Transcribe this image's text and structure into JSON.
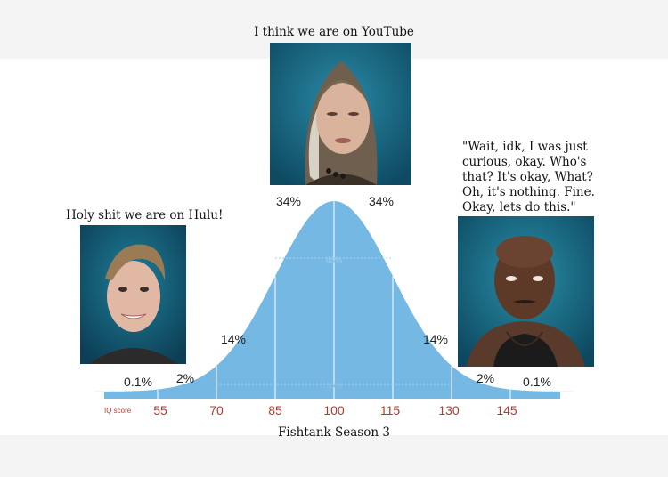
{
  "captions": {
    "top": "I think we are on YouTube",
    "left": "Holy shit we are on Hulu!",
    "right": "\"Wait, idk, I was just curious, okay. Who's that? It's okay, What? Oh, it's nothing. Fine. Okay, lets do this.\"",
    "bottom": "Fishtank Season 3"
  },
  "chart_data": {
    "type": "area",
    "xlabel": "IQ score",
    "ticks": [
      55,
      70,
      85,
      100,
      115,
      130,
      145
    ],
    "segments": [
      "0.1%",
      "2%",
      "14%",
      "34%",
      "34%",
      "14%",
      "2%",
      "0.1%"
    ],
    "inner_labels": [
      "68%",
      "95%"
    ],
    "color": "#74b8e3",
    "tick_color": "#c0392b"
  },
  "photos": {
    "top": "woman-portrait",
    "left": "person-portrait",
    "right": "man-portrait"
  }
}
